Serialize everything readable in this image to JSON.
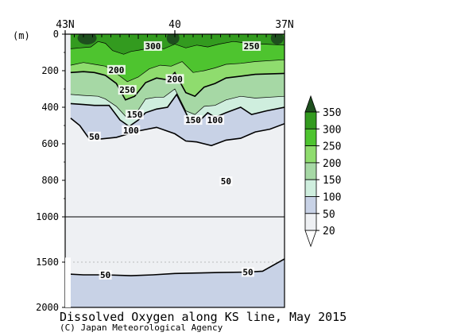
{
  "chart_data": {
    "type": "heatmap",
    "title": "Dissolved Oxygen along KS line, May 2015",
    "copyright": "(C) Japan Meteorological Agency",
    "y_unit_label": "(m)",
    "x_ticks": [
      {
        "lat": 43,
        "label": "43N"
      },
      {
        "lat": 40,
        "label": "40"
      },
      {
        "lat": 37,
        "label": "37N"
      }
    ],
    "xlim": [
      43,
      37
    ],
    "y_ticks_upper": [
      {
        "depth": 0,
        "label": "0"
      },
      {
        "depth": 200,
        "label": "200"
      },
      {
        "depth": 400,
        "label": "400"
      },
      {
        "depth": 600,
        "label": "600"
      },
      {
        "depth": 800,
        "label": "800"
      },
      {
        "depth": 1000,
        "label": "1000"
      }
    ],
    "y_ticks_lower": [
      {
        "depth": 1500,
        "label": "1500"
      },
      {
        "depth": 2000,
        "label": "2000"
      }
    ],
    "ylim": [
      0,
      2000
    ],
    "axis_break_depth": 1000,
    "colorbar": {
      "levels": [
        "350",
        "300",
        "250",
        "200",
        "150",
        "100",
        "50",
        "20"
      ],
      "colors": [
        "#1e4f1e",
        "#339b1f",
        "#4ec42f",
        "#8fdc6e",
        "#a6d8a5",
        "#cfeede",
        "#c8d2e6",
        "#eef0f3"
      ]
    },
    "contour_labels": [
      {
        "text": "300",
        "lat": 40.6,
        "depth": 65
      },
      {
        "text": "250",
        "lat": 37.9,
        "depth": 65
      },
      {
        "text": "200",
        "lat": 41.6,
        "depth": 195
      },
      {
        "text": "200",
        "lat": 40.0,
        "depth": 245
      },
      {
        "text": "250",
        "lat": 41.3,
        "depth": 305
      },
      {
        "text": "150",
        "lat": 41.1,
        "depth": 440
      },
      {
        "text": "150",
        "lat": 39.5,
        "depth": 470
      },
      {
        "text": "100",
        "lat": 38.9,
        "depth": 470
      },
      {
        "text": "100",
        "lat": 41.2,
        "depth": 525
      },
      {
        "text": "50",
        "lat": 42.2,
        "depth": 560
      },
      {
        "text": "50",
        "lat": 38.6,
        "depth": 805
      },
      {
        "text": "50",
        "lat": 41.9,
        "depth": 1640
      },
      {
        "text": "50",
        "lat": 38.0,
        "depth": 1610
      }
    ],
    "contours": [
      {
        "level": "50",
        "points": [
          [
            42.85,
            460
          ],
          [
            42.6,
            500
          ],
          [
            42.35,
            570
          ],
          [
            42.1,
            575
          ],
          [
            41.6,
            565
          ],
          [
            41.0,
            530
          ],
          [
            40.5,
            510
          ],
          [
            40.0,
            545
          ],
          [
            39.7,
            585
          ],
          [
            39.4,
            590
          ],
          [
            39.0,
            610
          ],
          [
            38.6,
            580
          ],
          [
            38.2,
            570
          ],
          [
            37.8,
            535
          ],
          [
            37.4,
            520
          ],
          [
            37.0,
            490
          ]
        ]
      },
      {
        "level": "50",
        "points": [
          [
            43.0,
            1630
          ],
          [
            42.5,
            1640
          ],
          [
            41.9,
            1640
          ],
          [
            41.2,
            1650
          ],
          [
            40.6,
            1640
          ],
          [
            40.0,
            1625
          ],
          [
            39.4,
            1620
          ],
          [
            38.8,
            1615
          ],
          [
            38.0,
            1610
          ],
          [
            37.6,
            1600
          ],
          [
            37.0,
            1465
          ]
        ]
      },
      {
        "level": "100",
        "points": [
          [
            42.85,
            380
          ],
          [
            42.5,
            385
          ],
          [
            42.2,
            390
          ],
          [
            41.8,
            390
          ],
          [
            41.5,
            470
          ],
          [
            41.25,
            505
          ],
          [
            41.0,
            470
          ],
          [
            40.8,
            430
          ],
          [
            40.5,
            410
          ],
          [
            40.2,
            400
          ],
          [
            39.95,
            330
          ],
          [
            39.6,
            470
          ],
          [
            39.35,
            480
          ],
          [
            39.1,
            430
          ],
          [
            38.9,
            455
          ],
          [
            38.6,
            430
          ],
          [
            38.2,
            400
          ],
          [
            37.9,
            440
          ],
          [
            37.5,
            420
          ],
          [
            37.0,
            400
          ]
        ]
      },
      {
        "level": "150",
        "points": [
          [
            42.85,
            330
          ],
          [
            42.5,
            335
          ],
          [
            42.1,
            340
          ],
          [
            41.9,
            355
          ],
          [
            41.6,
            395
          ],
          [
            41.3,
            460
          ],
          [
            41.05,
            430
          ],
          [
            40.8,
            355
          ],
          [
            40.5,
            345
          ],
          [
            40.3,
            345
          ],
          [
            40.0,
            300
          ],
          [
            39.7,
            420
          ],
          [
            39.45,
            440
          ],
          [
            39.2,
            395
          ],
          [
            38.9,
            390
          ],
          [
            38.6,
            360
          ],
          [
            38.2,
            340
          ],
          [
            37.8,
            350
          ],
          [
            37.0,
            340
          ]
        ]
      },
      {
        "level": "200",
        "points": [
          [
            42.85,
            210
          ],
          [
            42.5,
            205
          ],
          [
            42.2,
            210
          ],
          [
            41.9,
            225
          ],
          [
            41.6,
            270
          ],
          [
            41.35,
            360
          ],
          [
            41.1,
            340
          ],
          [
            40.8,
            265
          ],
          [
            40.5,
            240
          ],
          [
            40.2,
            250
          ],
          [
            40.0,
            210
          ],
          [
            39.7,
            320
          ],
          [
            39.45,
            340
          ],
          [
            39.2,
            290
          ],
          [
            38.9,
            270
          ],
          [
            38.6,
            240
          ],
          [
            38.2,
            230
          ],
          [
            37.8,
            220
          ],
          [
            37.0,
            215
          ]
        ]
      },
      {
        "level": "250",
        "points": [
          [
            42.85,
            170
          ],
          [
            42.5,
            155
          ],
          [
            42.2,
            165
          ],
          [
            41.9,
            175
          ],
          [
            41.6,
            215
          ],
          [
            41.3,
            260
          ],
          [
            41.0,
            235
          ],
          [
            40.7,
            190
          ],
          [
            40.4,
            170
          ],
          [
            40.1,
            175
          ],
          [
            39.8,
            150
          ],
          [
            39.5,
            210
          ],
          [
            39.2,
            200
          ],
          [
            38.9,
            185
          ],
          [
            38.6,
            165
          ],
          [
            38.2,
            160
          ],
          [
            37.8,
            150
          ],
          [
            37.0,
            140
          ]
        ]
      },
      {
        "level": "300",
        "points": [
          [
            42.85,
            80
          ],
          [
            42.6,
            75
          ],
          [
            42.3,
            70
          ],
          [
            42.1,
            40
          ],
          [
            41.9,
            50
          ],
          [
            41.7,
            90
          ],
          [
            41.4,
            110
          ],
          [
            41.2,
            95
          ],
          [
            40.9,
            85
          ],
          [
            40.6,
            70
          ],
          [
            40.3,
            80
          ],
          [
            40.0,
            55
          ],
          [
            39.7,
            75
          ],
          [
            39.4,
            60
          ],
          [
            39.1,
            70
          ],
          [
            38.8,
            55
          ],
          [
            38.4,
            40
          ],
          [
            38.0,
            50
          ],
          [
            37.5,
            55
          ],
          [
            37.0,
            60
          ]
        ]
      }
    ]
  }
}
